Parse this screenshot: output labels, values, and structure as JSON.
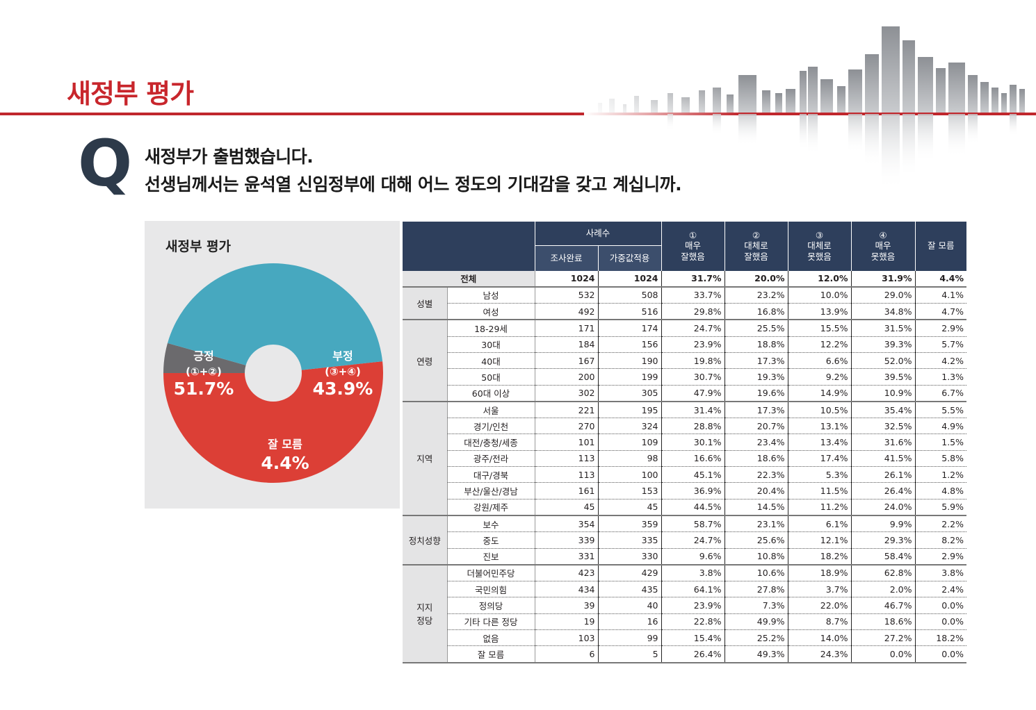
{
  "header": {
    "title": "새정부 평가"
  },
  "question": {
    "mark": "Q",
    "line1": "새정부가 출범했습니다.",
    "line2": "선생님께서는 윤석열 신임정부에 대해 어느 정도의 기대감을 갖고 계십니까."
  },
  "chart_data": {
    "type": "pie",
    "title": "새정부 평가",
    "slices": [
      {
        "name": "긍정",
        "sub": "(①+②)",
        "value": 51.7,
        "label": "51.7%",
        "color": "#dc3f36"
      },
      {
        "name": "부정",
        "sub": "(③+④)",
        "value": 43.9,
        "label": "43.9%",
        "color": "#47a8bf"
      },
      {
        "name": "잘 모름",
        "sub": "",
        "value": 4.4,
        "label": "4.4%",
        "color": "#6b6a6d"
      }
    ]
  },
  "table": {
    "header": {
      "sample": "사례수",
      "completed": "조사완료",
      "weighted": "가중값적용",
      "c1": {
        "num": "①",
        "label1": "매우",
        "label2": "잘했음"
      },
      "c2": {
        "num": "②",
        "label1": "대체로",
        "label2": "잘했음"
      },
      "c3": {
        "num": "③",
        "label1": "대체로",
        "label2": "못했음"
      },
      "c4": {
        "num": "④",
        "label1": "매우",
        "label2": "못했음"
      },
      "c5": {
        "label1": "잘 모름"
      }
    },
    "total": {
      "label": "전체",
      "values": [
        "1024",
        "1024",
        "31.7%",
        "20.0%",
        "12.0%",
        "31.9%",
        "4.4%"
      ]
    },
    "groups": [
      {
        "label": "성별",
        "rows": [
          {
            "label": "남성",
            "values": [
              "532",
              "508",
              "33.7%",
              "23.2%",
              "10.0%",
              "29.0%",
              "4.1%"
            ]
          },
          {
            "label": "여성",
            "values": [
              "492",
              "516",
              "29.8%",
              "16.8%",
              "13.9%",
              "34.8%",
              "4.7%"
            ]
          }
        ]
      },
      {
        "label": "연령",
        "rows": [
          {
            "label": "18-29세",
            "values": [
              "171",
              "174",
              "24.7%",
              "25.5%",
              "15.5%",
              "31.5%",
              "2.9%"
            ]
          },
          {
            "label": "30대",
            "values": [
              "184",
              "156",
              "23.9%",
              "18.8%",
              "12.2%",
              "39.3%",
              "5.7%"
            ]
          },
          {
            "label": "40대",
            "values": [
              "167",
              "190",
              "19.8%",
              "17.3%",
              "6.6%",
              "52.0%",
              "4.2%"
            ]
          },
          {
            "label": "50대",
            "values": [
              "200",
              "199",
              "30.7%",
              "19.3%",
              "9.2%",
              "39.5%",
              "1.3%"
            ]
          },
          {
            "label": "60대 이상",
            "values": [
              "302",
              "305",
              "47.9%",
              "19.6%",
              "14.9%",
              "10.9%",
              "6.7%"
            ]
          }
        ]
      },
      {
        "label": "지역",
        "rows": [
          {
            "label": "서울",
            "values": [
              "221",
              "195",
              "31.4%",
              "17.3%",
              "10.5%",
              "35.4%",
              "5.5%"
            ]
          },
          {
            "label": "경기/인천",
            "values": [
              "270",
              "324",
              "28.8%",
              "20.7%",
              "13.1%",
              "32.5%",
              "4.9%"
            ]
          },
          {
            "label": "대전/충청/세종",
            "values": [
              "101",
              "109",
              "30.1%",
              "23.4%",
              "13.4%",
              "31.6%",
              "1.5%"
            ]
          },
          {
            "label": "광주/전라",
            "values": [
              "113",
              "98",
              "16.6%",
              "18.6%",
              "17.4%",
              "41.5%",
              "5.8%"
            ]
          },
          {
            "label": "대구/경북",
            "values": [
              "113",
              "100",
              "45.1%",
              "22.3%",
              "5.3%",
              "26.1%",
              "1.2%"
            ]
          },
          {
            "label": "부산/울산/경남",
            "values": [
              "161",
              "153",
              "36.9%",
              "20.4%",
              "11.5%",
              "26.4%",
              "4.8%"
            ]
          },
          {
            "label": "강원/제주",
            "values": [
              "45",
              "45",
              "44.5%",
              "14.5%",
              "11.2%",
              "24.0%",
              "5.9%"
            ]
          }
        ]
      },
      {
        "label": "정치성향",
        "rows": [
          {
            "label": "보수",
            "values": [
              "354",
              "359",
              "58.7%",
              "23.1%",
              "6.1%",
              "9.9%",
              "2.2%"
            ]
          },
          {
            "label": "중도",
            "values": [
              "339",
              "335",
              "24.7%",
              "25.6%",
              "12.1%",
              "29.3%",
              "8.2%"
            ]
          },
          {
            "label": "진보",
            "values": [
              "331",
              "330",
              "9.6%",
              "10.8%",
              "18.2%",
              "58.4%",
              "2.9%"
            ]
          }
        ]
      },
      {
        "label": "지지\n정당",
        "rows": [
          {
            "label": "더불어민주당",
            "values": [
              "423",
              "429",
              "3.8%",
              "10.6%",
              "18.9%",
              "62.8%",
              "3.8%"
            ]
          },
          {
            "label": "국민의힘",
            "values": [
              "434",
              "435",
              "64.1%",
              "27.8%",
              "3.7%",
              "2.0%",
              "2.4%"
            ]
          },
          {
            "label": "정의당",
            "values": [
              "39",
              "40",
              "23.9%",
              "7.3%",
              "22.0%",
              "46.7%",
              "0.0%"
            ]
          },
          {
            "label": "기타 다른 정당",
            "values": [
              "19",
              "16",
              "22.8%",
              "49.9%",
              "8.7%",
              "18.6%",
              "0.0%"
            ]
          },
          {
            "label": "없음",
            "values": [
              "103",
              "99",
              "15.4%",
              "25.2%",
              "14.0%",
              "27.2%",
              "18.2%"
            ]
          },
          {
            "label": "잘 모름",
            "values": [
              "6",
              "5",
              "26.4%",
              "49.3%",
              "24.3%",
              "0.0%",
              "0.0%"
            ]
          }
        ]
      }
    ]
  }
}
